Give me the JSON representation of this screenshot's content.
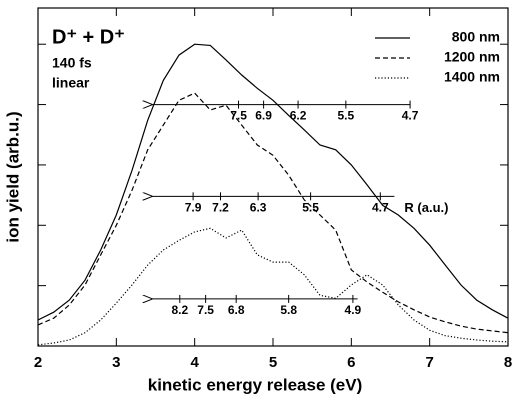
{
  "chart_data": {
    "type": "line",
    "x_label": "kinetic energy release (eV)",
    "y_label": "ion yield (arb.u.)",
    "annotations": [
      "D⁺ + D⁺",
      "140 fs",
      "linear"
    ],
    "x": [
      2.0,
      2.2,
      2.4,
      2.6,
      2.8,
      3.0,
      3.2,
      3.4,
      3.6,
      3.8,
      4.0,
      4.2,
      4.4,
      4.6,
      4.8,
      5.0,
      5.2,
      5.4,
      5.6,
      5.8,
      6.0,
      6.2,
      6.4,
      6.6,
      6.8,
      7.0,
      7.2,
      7.4,
      7.6,
      7.8,
      8.0
    ],
    "series": [
      {
        "name": "800 nm",
        "color": "#000000",
        "style": "solid",
        "values": [
          0.43,
          0.56,
          0.76,
          1.09,
          1.59,
          2.17,
          2.91,
          3.74,
          4.4,
          4.82,
          5.0,
          4.98,
          4.74,
          4.49,
          4.27,
          4.07,
          3.82,
          3.58,
          3.33,
          3.25,
          3.0,
          2.67,
          2.33,
          2.17,
          1.95,
          1.67,
          1.34,
          1.01,
          0.76,
          0.6,
          0.46
        ]
      },
      {
        "name": "1200 nm",
        "color": "#000000",
        "style": "dashed",
        "values": [
          0.35,
          0.46,
          0.68,
          1.01,
          1.51,
          2.0,
          2.58,
          3.25,
          3.66,
          4.07,
          4.19,
          3.91,
          3.99,
          3.66,
          3.33,
          3.16,
          2.83,
          2.42,
          2.17,
          1.92,
          1.26,
          1.06,
          0.89,
          0.73,
          0.6,
          0.48,
          0.4,
          0.33,
          0.28,
          0.25,
          0.22
        ]
      },
      {
        "name": "1400 nm",
        "color": "#000000",
        "style": "dotted",
        "values": [
          0.02,
          0.05,
          0.1,
          0.22,
          0.43,
          0.71,
          1.01,
          1.34,
          1.59,
          1.75,
          1.89,
          1.95,
          1.79,
          1.92,
          1.51,
          1.39,
          1.39,
          1.18,
          0.84,
          0.79,
          1.01,
          1.18,
          1.01,
          0.68,
          0.43,
          0.26,
          0.17,
          0.13,
          0.1,
          0.08,
          0.07
        ]
      }
    ],
    "r_axes": [
      {
        "y": 4.0,
        "x_from": 6.75,
        "x_to": 3.45,
        "marks": [
          {
            "x": 4.56,
            "r": 7.5
          },
          {
            "x": 4.88,
            "r": 6.9
          },
          {
            "x": 5.32,
            "r": 6.2
          },
          {
            "x": 5.93,
            "r": 5.5
          },
          {
            "x": 6.75,
            "r": 4.7
          }
        ]
      },
      {
        "y": 2.48,
        "x_from": 6.55,
        "x_to": 3.45,
        "label": "R (a.u.)",
        "marks": [
          {
            "x": 3.98,
            "r": 7.9
          },
          {
            "x": 4.33,
            "r": 7.2
          },
          {
            "x": 4.81,
            "r": 6.3
          },
          {
            "x": 5.48,
            "r": 5.5
          },
          {
            "x": 6.37,
            "r": 4.7
          }
        ]
      },
      {
        "y": 0.78,
        "x_from": 6.08,
        "x_to": 3.45,
        "marks": [
          {
            "x": 3.81,
            "r": 8.2
          },
          {
            "x": 4.14,
            "r": 7.5
          },
          {
            "x": 4.53,
            "r": 6.8
          },
          {
            "x": 5.2,
            "r": 5.8
          },
          {
            "x": 6.02,
            "r": 4.9
          }
        ]
      }
    ],
    "xlim": [
      2,
      8
    ],
    "xticks": [
      2,
      3,
      4,
      5,
      6,
      7,
      8
    ],
    "ylim": [
      0,
      5.6
    ],
    "yticks": [
      1,
      2,
      3,
      4,
      5
    ],
    "legend": "upper right",
    "grid": false
  }
}
